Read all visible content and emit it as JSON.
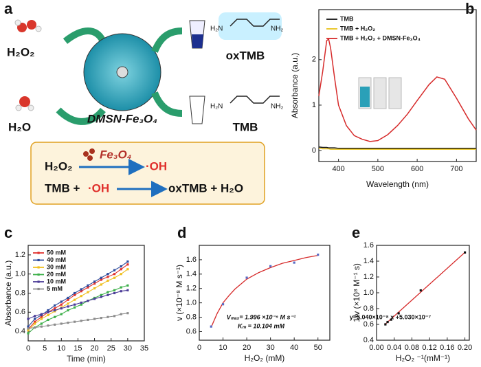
{
  "panel_labels": [
    "a",
    "b",
    "c",
    "d",
    "e"
  ],
  "schematic": {
    "h2o2": "H₂O₂",
    "h2o": "H₂O",
    "particle": "DMSN-Fe₃O₄",
    "oxtmb": "oxTMB",
    "tmb": "TMB",
    "amine_left": "H₂N",
    "amine_right": "NH₂",
    "ox_amine_left": "H₂N",
    "ox_amine_right": "NH₂",
    "reaction1": {
      "reactant": "H₂O₂",
      "catalyst": "Fe₃O₄",
      "product": "·OH"
    },
    "reaction2": {
      "reactant": "TMB + ",
      "radical": "·OH",
      "product": "oxTMB + H₂O"
    }
  },
  "chart_data": [
    {
      "type": "line",
      "xlabel": "Wavelength (nm)",
      "ylabel": "Absorbance (a.u.)",
      "x": [
        350,
        360,
        370,
        375,
        380,
        390,
        400,
        420,
        440,
        460,
        480,
        500,
        525,
        550,
        575,
        600,
        630,
        650,
        670,
        700,
        730,
        750
      ],
      "series": [
        {
          "name": "TMB",
          "color": "#111111",
          "values": [
            0.08,
            0.07,
            0.07,
            0.06,
            0.06,
            0.06,
            0.05,
            0.05,
            0.05,
            0.05,
            0.05,
            0.05,
            0.05,
            0.05,
            0.05,
            0.05,
            0.05,
            0.05,
            0.05,
            0.05,
            0.05,
            0.05
          ]
        },
        {
          "name": "TMB + H₂O₂",
          "color": "#e8c21a",
          "values": [
            0.05,
            0.04,
            0.04,
            0.04,
            0.03,
            0.03,
            0.03,
            0.03,
            0.03,
            0.03,
            0.03,
            0.03,
            0.03,
            0.03,
            0.03,
            0.03,
            0.03,
            0.03,
            0.03,
            0.03,
            0.03,
            0.03
          ]
        },
        {
          "name": "TMB + H₂O₂ + DMSN-Fe₃O₄",
          "color": "#d62a2a",
          "values": [
            1.2,
            1.75,
            2.42,
            2.45,
            2.25,
            1.6,
            1.0,
            0.55,
            0.33,
            0.25,
            0.2,
            0.22,
            0.35,
            0.55,
            0.8,
            1.1,
            1.45,
            1.62,
            1.57,
            1.15,
            0.7,
            0.45
          ]
        }
      ],
      "xlim": [
        350,
        750
      ],
      "xticks": [
        400,
        500,
        600,
        700
      ],
      "ylim": [
        -0.24,
        3.1
      ],
      "yticks": [
        0,
        1,
        2
      ]
    },
    {
      "type": "line",
      "xlabel": "Time (min)",
      "ylabel": "Absorbance (a.u.)",
      "markers": true,
      "x": [
        0,
        2,
        4,
        6,
        8,
        10,
        12,
        14,
        16,
        18,
        20,
        22,
        24,
        26,
        28,
        30
      ],
      "series": [
        {
          "name": "50 mM",
          "color": "#e0302c",
          "values": [
            0.42,
            0.5,
            0.55,
            0.6,
            0.64,
            0.68,
            0.73,
            0.78,
            0.82,
            0.86,
            0.9,
            0.94,
            0.97,
            1.0,
            1.05,
            1.1
          ]
        },
        {
          "name": "40 mM",
          "color": "#2b4a9c",
          "values": [
            0.45,
            0.53,
            0.57,
            0.62,
            0.67,
            0.71,
            0.75,
            0.8,
            0.84,
            0.88,
            0.92,
            0.96,
            1.0,
            1.04,
            1.08,
            1.13
          ]
        },
        {
          "name": "30 mM",
          "color": "#f0c020",
          "values": [
            0.41,
            0.48,
            0.53,
            0.57,
            0.61,
            0.65,
            0.69,
            0.73,
            0.77,
            0.81,
            0.85,
            0.89,
            0.93,
            0.96,
            1.0,
            1.05
          ]
        },
        {
          "name": "20 mM",
          "color": "#3db04a",
          "values": [
            0.38,
            0.44,
            0.48,
            0.52,
            0.55,
            0.58,
            0.62,
            0.65,
            0.68,
            0.72,
            0.75,
            0.78,
            0.81,
            0.83,
            0.86,
            0.88
          ]
        },
        {
          "name": "10 mM",
          "color": "#4c3d98",
          "values": [
            0.53,
            0.56,
            0.58,
            0.6,
            0.62,
            0.64,
            0.66,
            0.68,
            0.7,
            0.72,
            0.74,
            0.76,
            0.78,
            0.8,
            0.82,
            0.83
          ]
        },
        {
          "name": "5 mM",
          "color": "#8c8c8c",
          "values": [
            0.43,
            0.44,
            0.45,
            0.46,
            0.47,
            0.48,
            0.49,
            0.5,
            0.51,
            0.52,
            0.53,
            0.54,
            0.55,
            0.56,
            0.58,
            0.59
          ]
        }
      ],
      "xlim": [
        0,
        35
      ],
      "xticks": [
        0,
        5,
        10,
        15,
        20,
        25,
        30,
        35
      ],
      "ylim": [
        0.3,
        1.3
      ],
      "yticks": [
        0.4,
        0.6,
        0.8,
        {
          "value": 1.0,
          "label": "1.0"
        },
        1.2
      ]
    },
    {
      "type": "scatter",
      "xlabel": "H₂O₂ (mM)",
      "ylabel": "v (×10⁻⁸ M s⁻¹)",
      "x": [
        5,
        10,
        20,
        30,
        40,
        50
      ],
      "series": [
        {
          "color": "#5a6bc4",
          "values": [
            0.67,
            0.98,
            1.35,
            1.51,
            1.56,
            1.67
          ]
        }
      ],
      "fit": {
        "color": "#d62a2a",
        "x": [
          5,
          7.5,
          10,
          12.5,
          15,
          20,
          25,
          30,
          35,
          40,
          45,
          50
        ],
        "values": [
          0.66,
          0.85,
          1.0,
          1.1,
          1.19,
          1.33,
          1.42,
          1.49,
          1.55,
          1.59,
          1.63,
          1.66
        ]
      },
      "annotations": [
        "Vₘₐₓ= 1.996 ×10⁻⁸ M s⁻¹",
        "Kₘ = 10.104 mM"
      ],
      "xlim": [
        0,
        55
      ],
      "xticks": [
        0,
        10,
        20,
        30,
        40,
        50
      ],
      "ylim": [
        0.48,
        1.8
      ],
      "yticks": [
        0.6,
        0.8,
        {
          "value": 1.0,
          "label": "1.0"
        },
        1.2,
        1.4,
        1.6
      ]
    },
    {
      "type": "scatter",
      "xlabel": "H₂O₂ ⁻¹(mM⁻¹)",
      "ylabel": "1/v (×10⁸ M⁻¹ s)",
      "x": [
        0.02,
        0.025,
        0.033,
        0.05,
        0.1,
        0.2
      ],
      "series": [
        {
          "color": "#111111",
          "values": [
            0.6,
            0.63,
            0.66,
            0.74,
            1.03,
            1.51
          ]
        }
      ],
      "fit": {
        "color": "#d62a2a",
        "x": [
          0.02,
          0.2
        ],
        "values": [
          0.604,
          1.511
        ]
      },
      "annotations": [
        "y=5.040×10⁻⁸ x +5.030×10⁻⁷"
      ],
      "xlim": [
        0,
        0.21
      ],
      "xticks": [
        {
          "value": 0,
          "label": "0.00"
        },
        {
          "value": 0.04,
          "label": "0.04"
        },
        {
          "value": 0.08,
          "label": "0.08"
        },
        {
          "value": 0.12,
          "label": "0.12"
        },
        {
          "value": 0.16,
          "label": "0.16"
        },
        {
          "value": 0.2,
          "label": "0.20"
        }
      ],
      "ylim": [
        0.4,
        1.6
      ],
      "yticks": [
        0.4,
        0.6,
        0.8,
        {
          "value": 1.0,
          "label": "1.0"
        },
        1.2,
        1.4,
        1.6
      ]
    }
  ]
}
